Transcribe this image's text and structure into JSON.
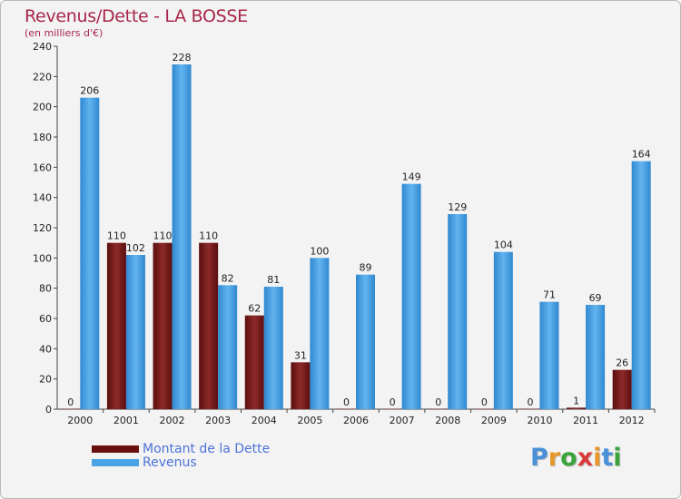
{
  "chart_data": {
    "type": "bar",
    "title": "Revenus/Dette - LA BOSSE",
    "subtitle": "(en milliers d'€)",
    "categories": [
      "2000",
      "2001",
      "2002",
      "2003",
      "2004",
      "2005",
      "2006",
      "2007",
      "2008",
      "2009",
      "2010",
      "2011",
      "2012"
    ],
    "series": [
      {
        "name": "Montant de la Dette",
        "color": "#7a1d1d",
        "values": [
          0,
          110,
          110,
          110,
          62,
          31,
          0,
          0,
          0,
          0,
          0,
          1,
          26
        ]
      },
      {
        "name": "Revenus",
        "color": "#4aa3e3",
        "values": [
          206,
          102,
          228,
          82,
          81,
          100,
          89,
          149,
          129,
          104,
          71,
          69,
          164
        ]
      }
    ],
    "yticks": [
      0,
      20,
      40,
      60,
      80,
      100,
      120,
      140,
      160,
      180,
      200,
      220,
      240
    ],
    "ylim": [
      0,
      240
    ],
    "grid": false,
    "legend_position": "bottom-left"
  },
  "branding": {
    "logo_letters": [
      "P",
      "r",
      "o",
      "x",
      "i",
      "t",
      "i"
    ],
    "logo_colors": [
      "#4a90d9",
      "#e8962a",
      "#3aa33a",
      "#d93a3a",
      "#e8962a",
      "#4a90d9",
      "#3aa33a"
    ]
  }
}
